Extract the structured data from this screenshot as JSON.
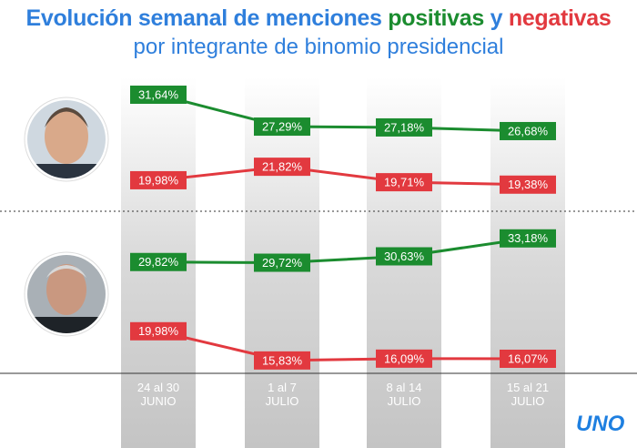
{
  "title": {
    "parts": [
      {
        "text": "Evolución semanal de menciones ",
        "color": "#2f7fdc"
      },
      {
        "text": "positivas",
        "color": "#1b8c2f"
      },
      {
        "text": " y ",
        "color": "#2f7fdc"
      },
      {
        "text": "negativas",
        "color": "#e2393f"
      }
    ]
  },
  "subtitle": "por integrante de binomio presidencial",
  "logo": "UNO",
  "chart_data": [
    {
      "type": "line",
      "ylim": [
        16,
        34
      ],
      "series": [
        {
          "color": "#1b8c2f",
          "values": [
            31.64,
            27.29,
            27.18,
            26.68
          ],
          "value_labels": [
            "31,64%",
            "27,29%",
            "27,18%",
            "26,68%"
          ]
        },
        {
          "color": "#e2393f",
          "values": [
            19.98,
            21.82,
            19.71,
            19.38
          ],
          "value_labels": [
            "19,98%",
            "21,82%",
            "19,71%",
            "19,38%"
          ]
        }
      ]
    },
    {
      "type": "line",
      "ylim": [
        14,
        36
      ],
      "categories": [
        "24 al 30\nJUNIO",
        "1 al 7\nJULIO",
        "8 al 14\nJULIO",
        "15 al 21\nJULIO"
      ],
      "series": [
        {
          "color": "#1b8c2f",
          "values": [
            29.82,
            29.72,
            30.63,
            33.18
          ],
          "value_labels": [
            "29,82%",
            "29,72%",
            "30,63%",
            "33,18%"
          ]
        },
        {
          "color": "#e2393f",
          "values": [
            19.98,
            15.83,
            16.09,
            16.07
          ],
          "value_labels": [
            "19,98%",
            "15,83%",
            "16,09%",
            "16,07%"
          ]
        }
      ]
    }
  ]
}
